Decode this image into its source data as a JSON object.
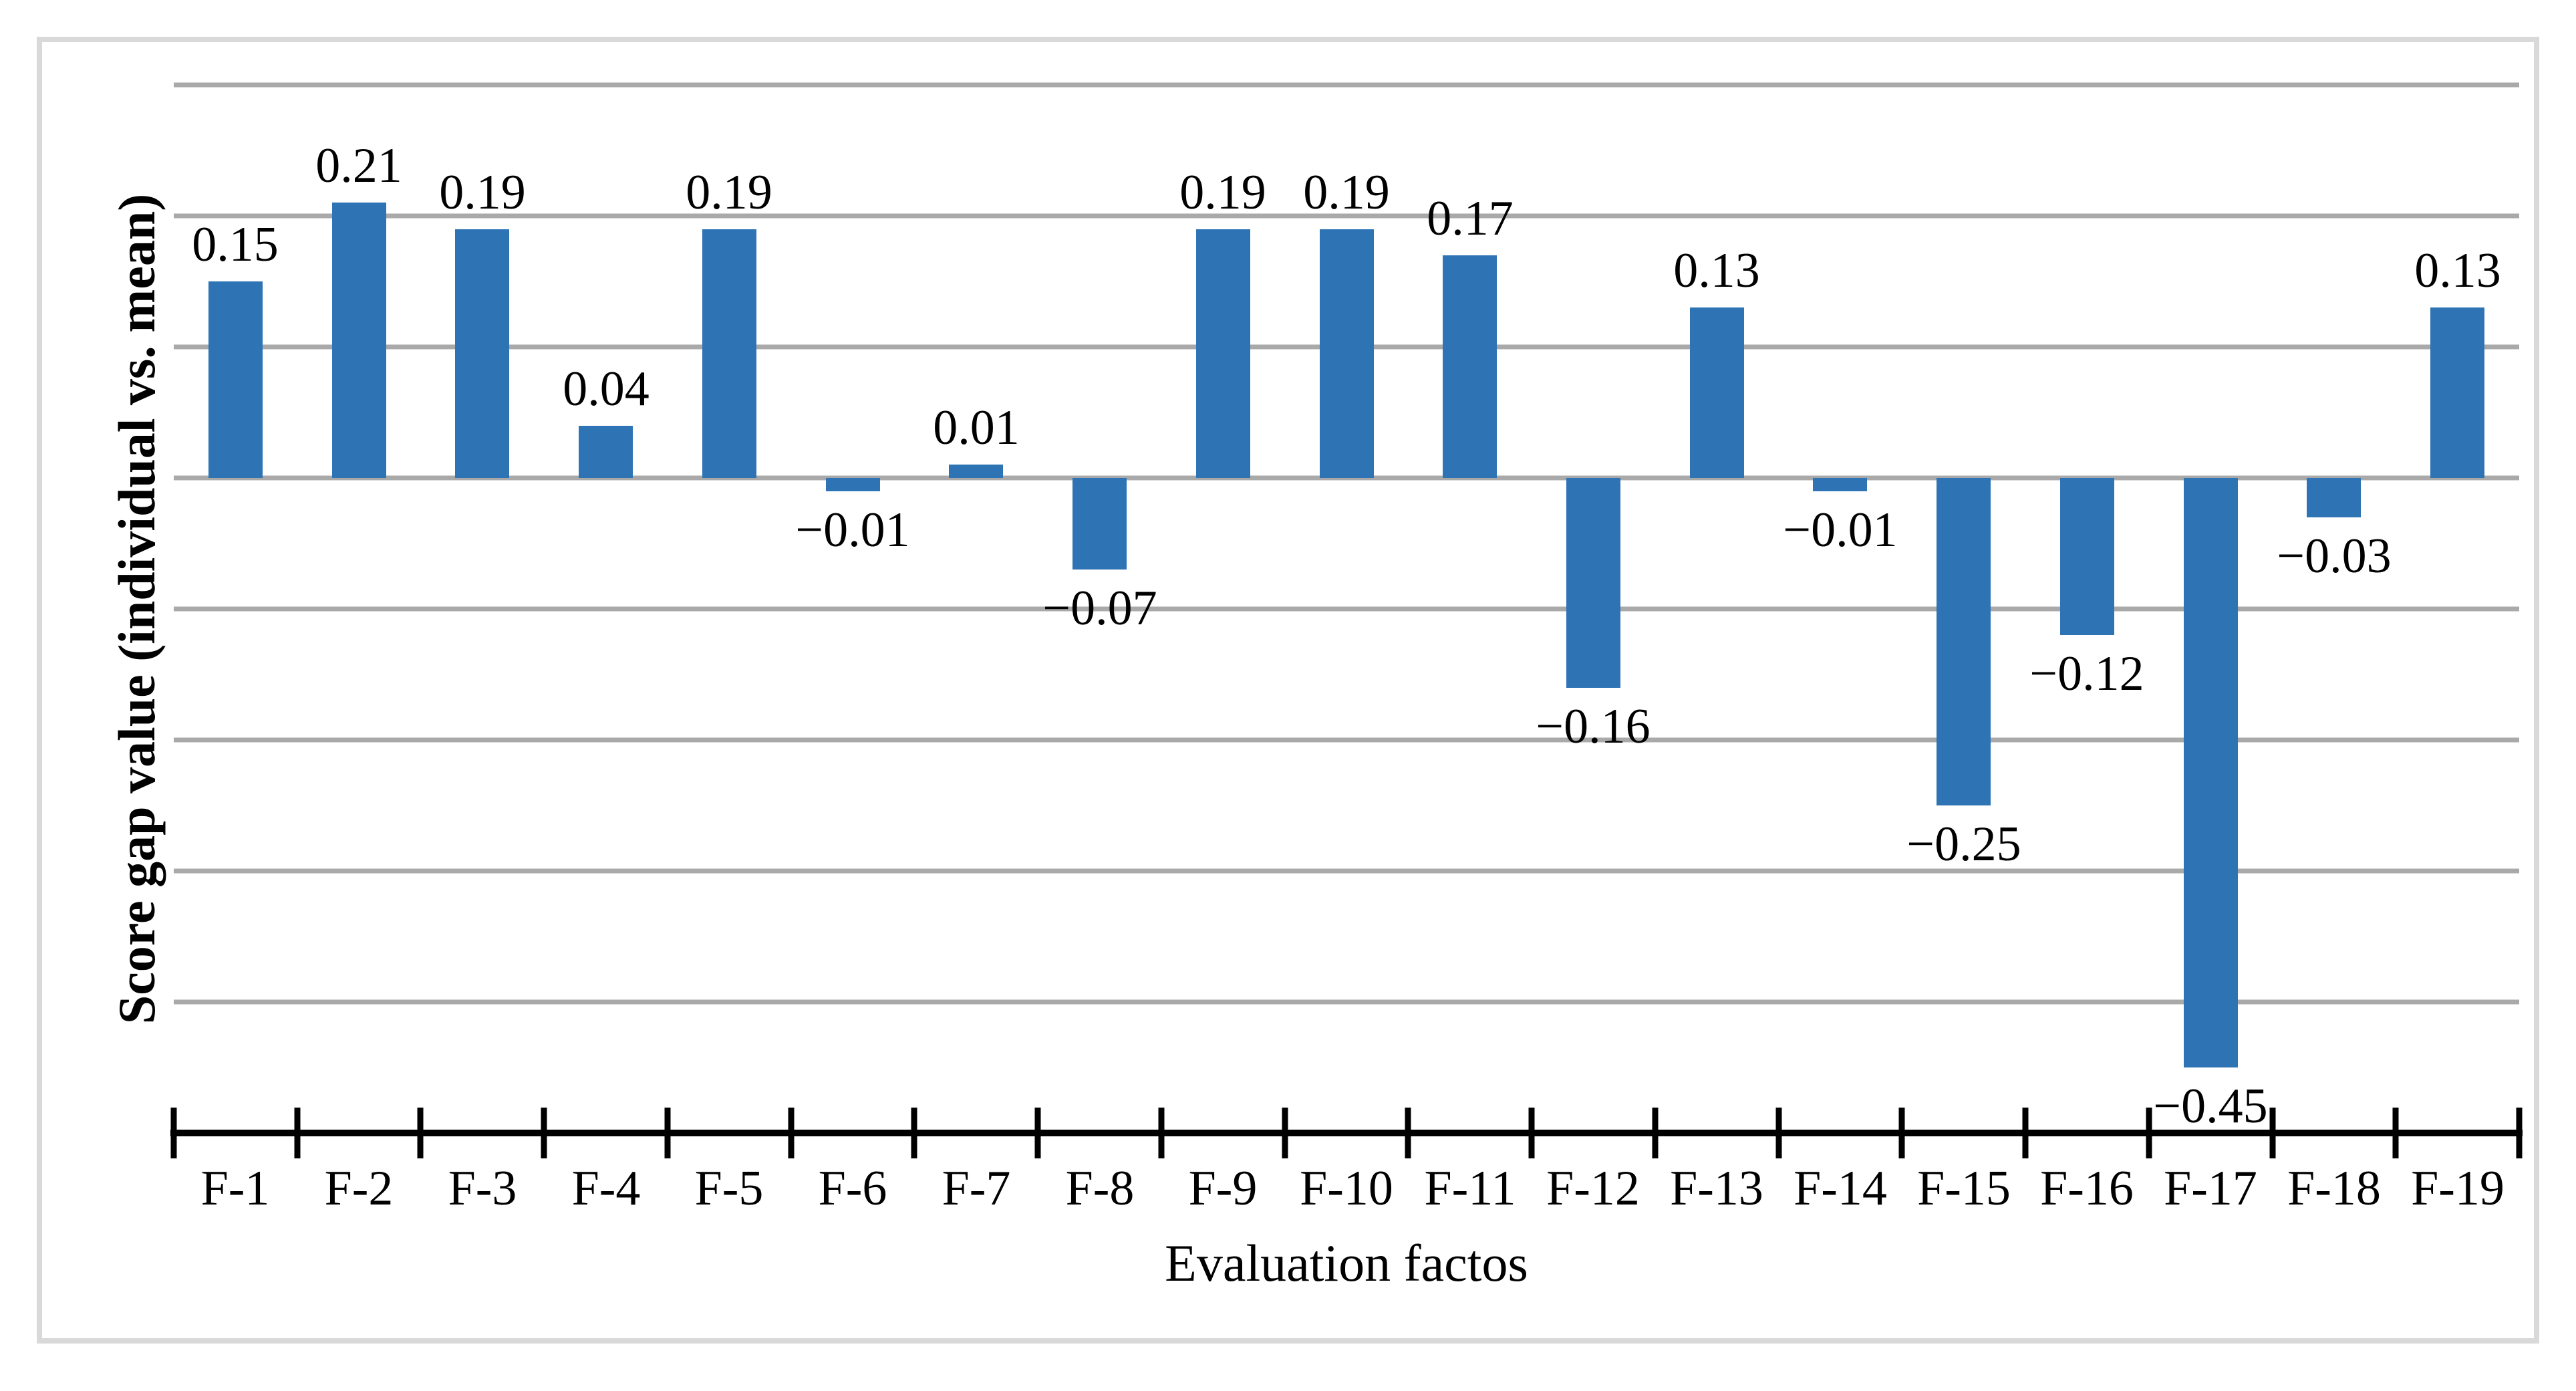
{
  "chart_data": {
    "type": "bar",
    "title": "",
    "xlabel": "Evaluation factos",
    "ylabel": "Score gap value (individual vs. mean)",
    "categories": [
      "F-1",
      "F-2",
      "F-3",
      "F-4",
      "F-5",
      "F-6",
      "F-7",
      "F-8",
      "F-9",
      "F-10",
      "F-11",
      "F-12",
      "F-13",
      "F-14",
      "F-15",
      "F-16",
      "F-17",
      "F-18",
      "F-19"
    ],
    "values": [
      0.15,
      0.21,
      0.19,
      0.04,
      0.19,
      -0.01,
      0.01,
      -0.07,
      0.19,
      0.19,
      0.17,
      -0.16,
      0.13,
      -0.01,
      -0.25,
      -0.12,
      -0.45,
      -0.03,
      0.13
    ],
    "value_labels": [
      "0.15",
      "0.21",
      "0.19",
      "0.04",
      "0.19",
      "−0.01",
      "0.01",
      "−0.07",
      "0.19",
      "0.19",
      "0.17",
      "−0.16",
      "0.13",
      "−0.01",
      "−0.25",
      "−0.12",
      "−0.45",
      "−0.03",
      "0.13"
    ],
    "ylim": [
      -0.5,
      0.3
    ],
    "gridline_step": 0.1,
    "grid": true,
    "legend": false,
    "y_tick_labels_shown": false,
    "colors": {
      "bar": "#2E74B5",
      "gridline": "#A9A9A9",
      "axis": "#000000",
      "frame_border": "#D9D9D9",
      "background": "#FFFFFF",
      "text": "#000000"
    }
  }
}
